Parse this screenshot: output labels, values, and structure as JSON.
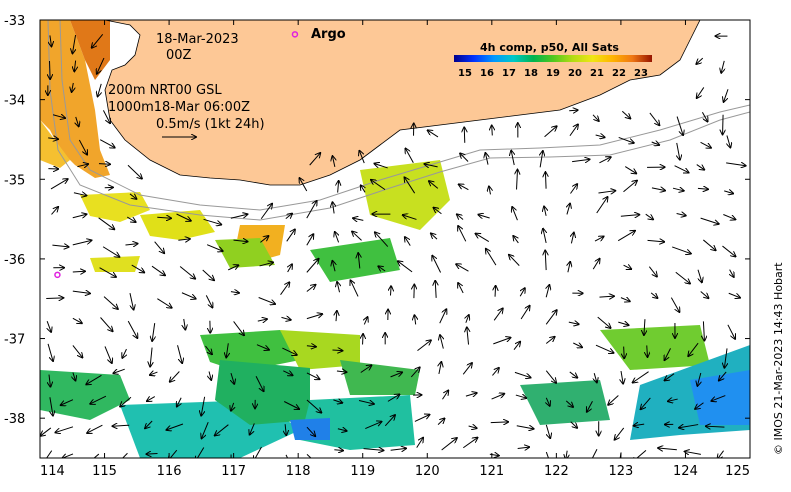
{
  "map": {
    "date_line": "18-Mar-2023",
    "time_line": "00Z",
    "depth_line_1": "200m  NRT00 GSL",
    "depth_line_2": "1000m18-Mar 06:00Z",
    "vector_scale_label": "0.5m/s (1kt 24h)",
    "argo_label": "Argo",
    "credit": "© IMOS 21-Mar-2023 14:43 Hobart",
    "colors": {
      "land": "#fdc896",
      "ocean": "#ffffff",
      "argo_marker": "#e020e0",
      "contour": "#999999"
    },
    "x_axis": {
      "range": [
        114,
        125
      ],
      "ticks": [
        "114",
        "115",
        "116",
        "117",
        "118",
        "119",
        "120",
        "121",
        "122",
        "123",
        "124",
        "125"
      ]
    },
    "y_axis": {
      "range": [
        -38.5,
        -33
      ],
      "ticks": [
        "-33",
        "-34",
        "-35",
        "-36",
        "-37",
        "-38"
      ]
    },
    "colorbar": {
      "title": "4h comp, p50, All Sats",
      "labels": [
        "15",
        "16",
        "17",
        "18",
        "19",
        "20",
        "21",
        "22",
        "23"
      ],
      "range": [
        14.5,
        23.5
      ],
      "colors": [
        "#00008c",
        "#0032ff",
        "#0096ff",
        "#00c8c8",
        "#00b450",
        "#50c81e",
        "#b4dc14",
        "#f0e614",
        "#ffb400",
        "#f07814",
        "#c83200",
        "#961400"
      ]
    },
    "argo_floats": [
      {
        "lon": 117.95,
        "lat": -33.18
      },
      {
        "lon": 114.27,
        "lat": -36.2
      }
    ]
  }
}
